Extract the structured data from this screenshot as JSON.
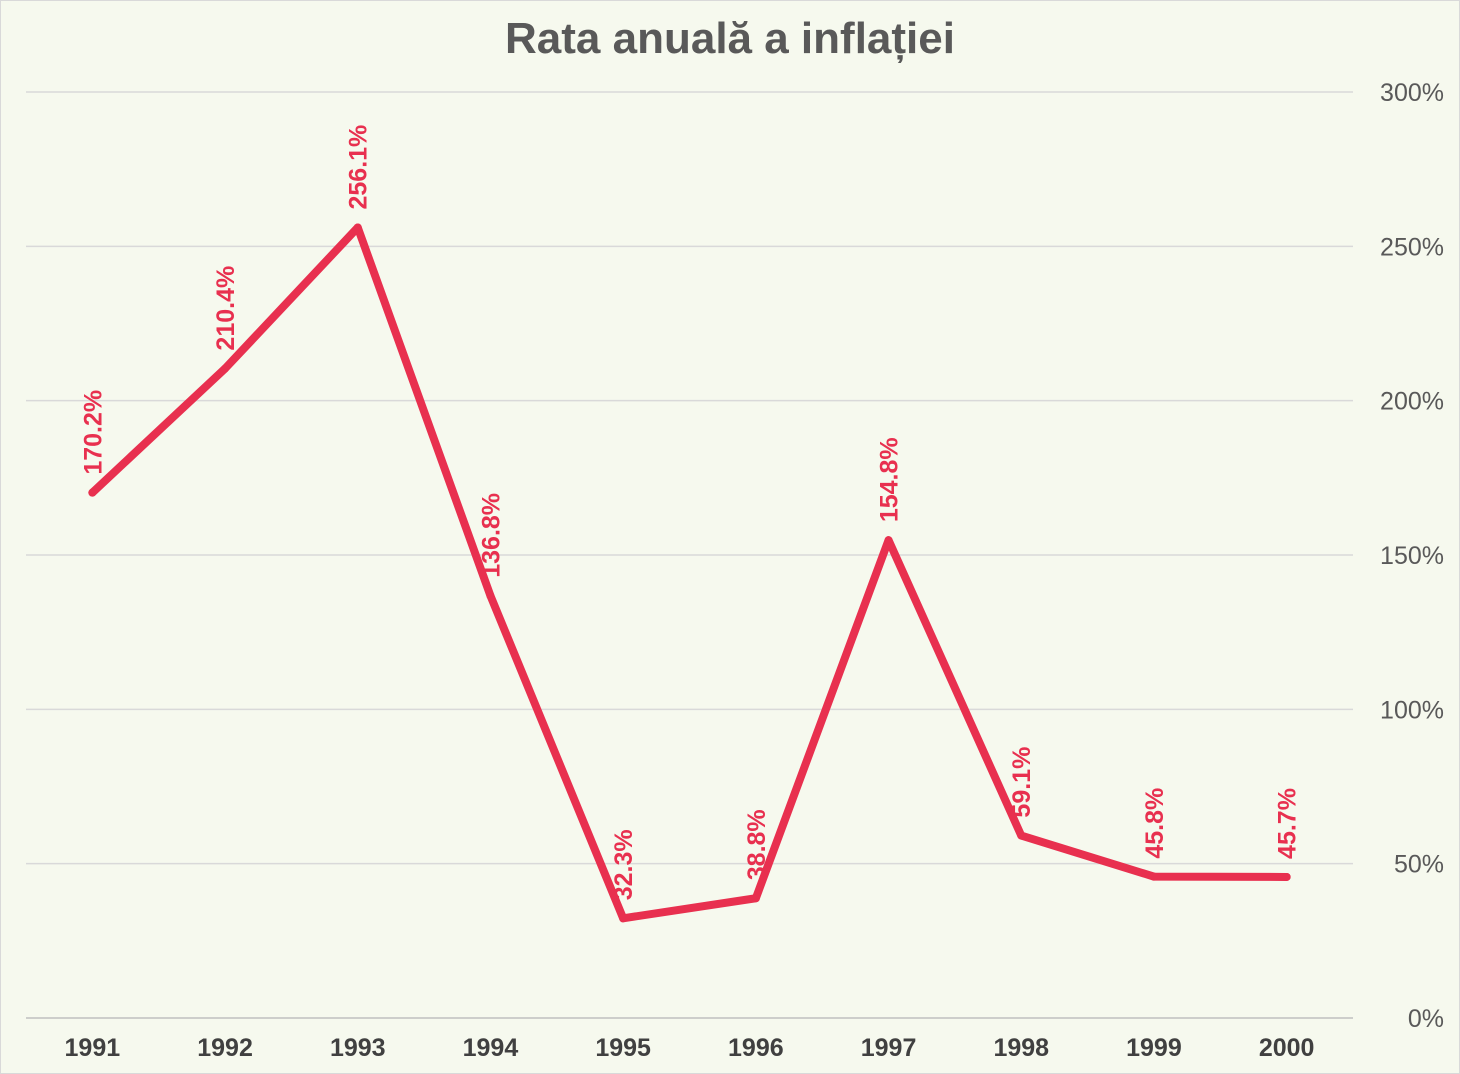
{
  "chart_data": {
    "type": "line",
    "title": "Rata anuală a inflației",
    "categories": [
      "1991",
      "1992",
      "1993",
      "1994",
      "1995",
      "1996",
      "1997",
      "1998",
      "1999",
      "2000"
    ],
    "series": [
      {
        "values": [
          170.2,
          210.4,
          256.1,
          136.8,
          32.3,
          38.8,
          154.8,
          59.1,
          45.8,
          45.7
        ],
        "labels": [
          "170.2%",
          "210.4%",
          "256.1%",
          "136.8%",
          "32.3%",
          "38.8%",
          "154.8%",
          "59.1%",
          "45.8%",
          "45.7%"
        ],
        "color": "#e8304f"
      }
    ],
    "ylim": [
      0,
      300
    ],
    "yticks": [
      0,
      50,
      100,
      150,
      200,
      250,
      300
    ],
    "ytick_labels": [
      "0%",
      "50%",
      "100%",
      "150%",
      "200%",
      "250%",
      "300%"
    ],
    "y_axis_side": "right",
    "grid": true,
    "legend": "none",
    "xlabel": "",
    "ylabel": ""
  },
  "colors": {
    "background": "#f6f9ee",
    "line": "#e8304f",
    "grid": "#d9d9d9",
    "title": "#595959"
  }
}
